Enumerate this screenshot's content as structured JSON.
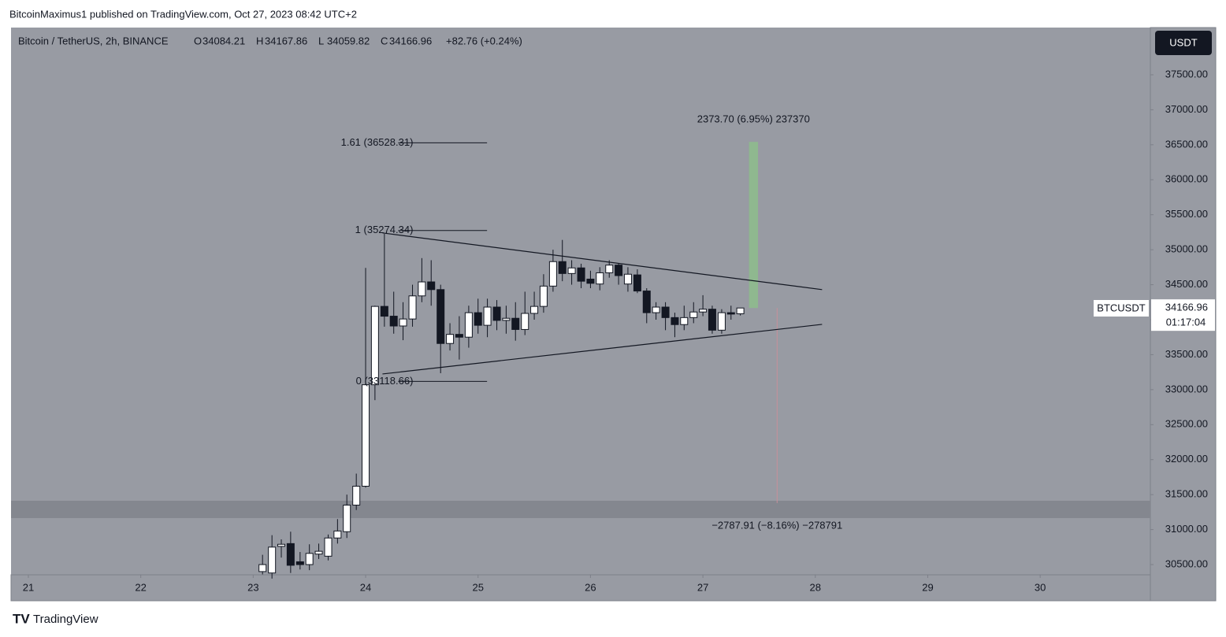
{
  "header": "BitcoinMaximus1 published on TradingView.com, Oct 27, 2023 08:42 UTC+2",
  "footer": "TradingView",
  "chart_data": {
    "type": "candlestick",
    "symbol": "Bitcoin / TetherUS, 2h, BINANCE",
    "ohlc_legend": [
      {
        "label": "O",
        "value": 34084.21
      },
      {
        "label": "H",
        "value": 34167.86
      },
      {
        "label": "L",
        "value": 34059.82
      },
      {
        "label": "C",
        "value": 34166.96
      }
    ],
    "change": "+82.76 (+0.24%)",
    "currency": "USDT",
    "ticker": "BTCUSDT",
    "last_price": 34166.96,
    "countdown": "01:17:04",
    "x": [
      23.083,
      23.167,
      23.25,
      23.333,
      23.417,
      23.5,
      23.583,
      23.667,
      23.75,
      23.833,
      23.917,
      24.0,
      24.083,
      24.167,
      24.25,
      24.333,
      24.417,
      24.5,
      24.583,
      24.667,
      24.75,
      24.833,
      24.917,
      25.0,
      25.083,
      25.167,
      25.25,
      25.333,
      25.417,
      25.5,
      25.583,
      25.667,
      25.75,
      25.833,
      25.917,
      26.0,
      26.083,
      26.167,
      26.25,
      26.333,
      26.417,
      26.5,
      26.583,
      26.667,
      26.75,
      26.833,
      26.917,
      27.0,
      27.083,
      27.167,
      27.25,
      27.333
    ],
    "open": [
      30400,
      30380,
      30760,
      30800,
      30540,
      30500,
      30650,
      30620,
      30880,
      30970,
      31350,
      31620,
      33070,
      34190,
      34050,
      33910,
      34010,
      34340,
      34540,
      34430,
      33660,
      33790,
      33750,
      34100,
      33920,
      34180,
      33990,
      34020,
      33860,
      34090,
      34190,
      34480,
      34830,
      34660,
      34740,
      34580,
      34510,
      34670,
      34780,
      34510,
      34640,
      34410,
      34100,
      34180,
      34030,
      33930,
      34030,
      34110,
      34150,
      33850,
      34100,
      34084.21
    ],
    "high": [
      30640,
      30920,
      30860,
      30970,
      30680,
      30790,
      30800,
      30930,
      31150,
      31500,
      31800,
      34740,
      34200,
      35227,
      34400,
      34250,
      34500,
      34880,
      34850,
      34500,
      33950,
      34050,
      34200,
      34300,
      34300,
      34280,
      34200,
      34250,
      34400,
      34400,
      34650,
      35000,
      35140,
      34850,
      34800,
      34700,
      34750,
      34850,
      34800,
      34750,
      34720,
      34450,
      34250,
      34250,
      34100,
      34200,
      34250,
      34350,
      34200,
      34150,
      34200,
      34167.86
    ],
    "low": [
      30360,
      30300,
      30600,
      30380,
      30430,
      30420,
      30580,
      30560,
      30800,
      30880,
      31280,
      31600,
      32850,
      33900,
      33800,
      33707,
      33900,
      34250,
      34200,
      33235,
      33560,
      33430,
      33600,
      33800,
      33750,
      33850,
      33800,
      33700,
      33780,
      34000,
      34100,
      34400,
      34550,
      34500,
      34450,
      34450,
      34420,
      34600,
      34500,
      34400,
      34380,
      33950,
      34000,
      33850,
      33750,
      33850,
      33950,
      34050,
      33800,
      33800,
      34000,
      34059.82
    ],
    "close": [
      30500,
      30750,
      30790,
      30490,
      30500,
      30660,
      30690,
      30880,
      30980,
      31350,
      31620,
      33070,
      34190,
      34050,
      33910,
      34010,
      34340,
      34540,
      34430,
      33660,
      33790,
      33750,
      34100,
      33920,
      34180,
      33990,
      34020,
      33860,
      34090,
      34190,
      34480,
      34830,
      34660,
      34740,
      34550,
      34520,
      34670,
      34780,
      34630,
      34650,
      34410,
      34100,
      34180,
      34030,
      33930,
      34030,
      34110,
      34150,
      33850,
      34100,
      34080,
      34166.96
    ],
    "up_color": "#ffffff",
    "down_color": "#131722",
    "xlim": [
      20.846,
      30.98
    ],
    "xticks": [
      21,
      22,
      23,
      24,
      25,
      26,
      27,
      28,
      29,
      30
    ],
    "ylim": [
      30354,
      38175
    ],
    "yticks": [
      {
        "value": 30500,
        "label": "30500.00"
      },
      {
        "value": 31000,
        "label": "31000.00"
      },
      {
        "value": 31500,
        "label": "31500.00"
      },
      {
        "value": 32000,
        "label": "32000.00"
      },
      {
        "value": 32500,
        "label": "32500.00"
      },
      {
        "value": 33000,
        "label": "33000.00"
      },
      {
        "value": 33500,
        "label": "33500.00"
      },
      {
        "value": 34000,
        "label": "34000.00"
      },
      {
        "value": 34500,
        "label": "34500.00"
      },
      {
        "value": 35000,
        "label": "35000.00"
      },
      {
        "value": 35500,
        "label": "35500.00"
      },
      {
        "value": 36000,
        "label": "36000.00"
      },
      {
        "value": 36500,
        "label": "36500.00"
      },
      {
        "value": 37000,
        "label": "37000.00"
      },
      {
        "value": 37500,
        "label": "37500.00"
      }
    ],
    "fib_levels": [
      {
        "label": "1.61 (36528.31)",
        "value": 36528.31
      },
      {
        "label": "1 (35274.34)",
        "value": 35274.34
      },
      {
        "label": "0 (33118.66)",
        "value": 33118.66
      }
    ],
    "fib_x": [
      24.29,
      25.08
    ],
    "trend_lines": [
      {
        "x": [
          24.15,
          28.06
        ],
        "y": [
          35240,
          34430
        ]
      },
      {
        "x": [
          24.15,
          28.06
        ],
        "y": [
          33224,
          33933
        ]
      }
    ],
    "support_zone": [
      31165,
      31412
    ],
    "measures": [
      {
        "label": "2373.70 (6.95%) 237370",
        "x": [
          27.41,
          27.49
        ],
        "from": 34166.96,
        "to": 36540.66,
        "color": "#8fb88f"
      },
      {
        "label": "−2787.91 (−8.16%) −278791",
        "x": [
          27.66,
          27.66
        ],
        "from": 34166.96,
        "to": 31379.05,
        "color": "#c88f9a"
      }
    ]
  }
}
